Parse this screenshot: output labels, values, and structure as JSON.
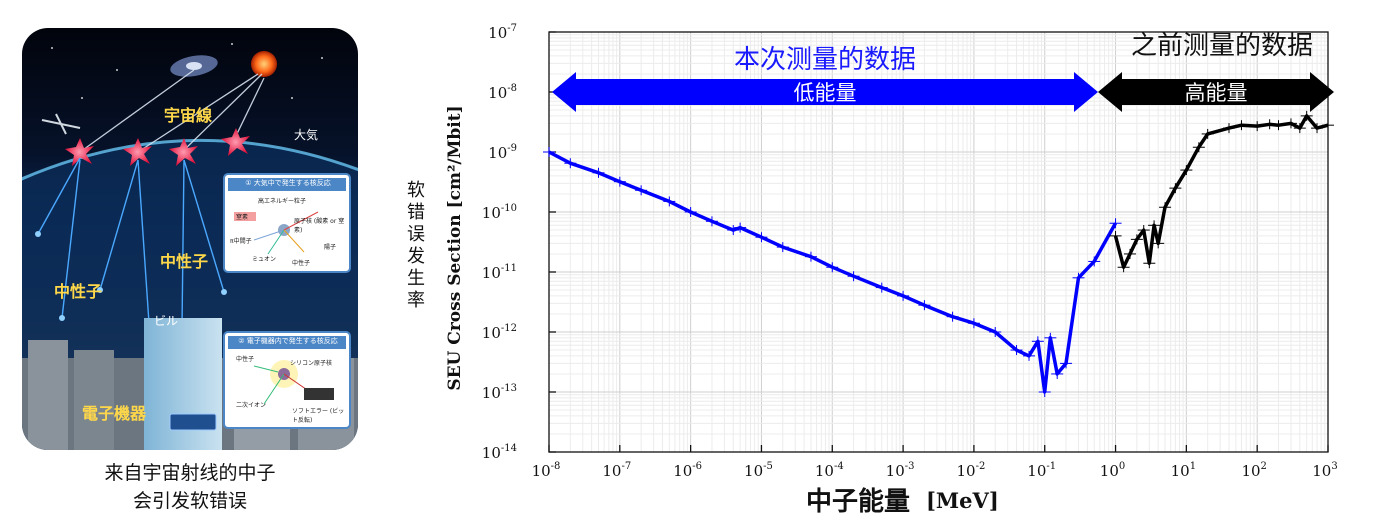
{
  "illustration": {
    "labels": {
      "cosmic_ray": "宇宙線",
      "atmosphere": "大気",
      "neutron_left": "中性子",
      "neutron_center": "中性子",
      "building": "ビル",
      "electronic_device": "電子機器"
    },
    "inset1": {
      "title": "① 大気中で発生する核反応",
      "items": [
        "高エネルギー粒子",
        "窒素",
        "原子核 (酸素 or 窒素)",
        "π中間子",
        "陽子",
        "ミュオン",
        "中性子"
      ]
    },
    "inset2": {
      "title": "② 電子機器内で発生する核反応",
      "items": [
        "中性子",
        "シリコン原子核",
        "二次イオン",
        "ソフトエラー (ビット反転)"
      ]
    },
    "caption_line1": "来自宇宙射线的中子",
    "caption_line2": "会引发软错误"
  },
  "chart_data": {
    "type": "line",
    "x_scale": "log",
    "y_scale": "log",
    "xlim": [
      1e-08,
      1000
    ],
    "ylim": [
      1e-14,
      1e-07
    ],
    "xlabel": "中子能量",
    "xlabel_unit": "[MeV]",
    "ylabel_cn": "软错误发生率",
    "ylabel_en": "SEU Cross Section [cm²/Mbit]",
    "x_tick_exponents": [
      "-8",
      "-7",
      "-6",
      "-5",
      "-4",
      "-3",
      "-2",
      "-1",
      "0",
      "1",
      "2",
      "3"
    ],
    "y_tick_exponents": [
      "-14",
      "-13",
      "-12",
      "-11",
      "-10",
      "-9",
      "-8",
      "-7"
    ],
    "tick_base": "10",
    "grid": true,
    "annotations": {
      "this_measurement": "本次测量的数据",
      "low_energy": "低能量",
      "previous_measurement": "之前测量的数据",
      "high_energy": "高能量"
    },
    "series": [
      {
        "color": "#0000ff",
        "x": [
          1e-08,
          2e-08,
          5e-08,
          1e-07,
          2e-07,
          5e-07,
          1e-06,
          2e-06,
          4e-06,
          5e-06,
          1e-05,
          2e-05,
          5e-05,
          0.0001,
          0.0002,
          0.0005,
          0.001,
          0.002,
          0.005,
          0.01,
          0.02,
          0.04,
          0.06,
          0.08,
          0.1,
          0.12,
          0.15,
          0.2,
          0.3,
          0.5,
          1
        ],
        "y": [
          1e-09,
          6.5e-10,
          4.5e-10,
          3.2e-10,
          2.3e-10,
          1.5e-10,
          1e-10,
          7e-11,
          5e-11,
          5.5e-11,
          3.8e-11,
          2.6e-11,
          1.8e-11,
          1.2e-11,
          8.5e-12,
          5.5e-12,
          4e-12,
          2.8e-12,
          1.8e-12,
          1.4e-12,
          1e-12,
          5e-13,
          4e-13,
          7e-13,
          1e-13,
          8e-13,
          2e-13,
          3e-13,
          8e-12,
          1.5e-11,
          6.5e-11
        ]
      },
      {
        "color": "#000000",
        "x": [
          1,
          1.3,
          1.6,
          2,
          2.5,
          3,
          3.5,
          4,
          5,
          7,
          10,
          15,
          20,
          40,
          60,
          100,
          150,
          200,
          300,
          400,
          500,
          700,
          1000
        ],
        "y": [
          4e-11,
          1.2e-11,
          2e-11,
          3.5e-11,
          5e-11,
          1.4e-11,
          6e-11,
          3e-11,
          1.2e-10,
          2.5e-10,
          5e-10,
          1.2e-09,
          2e-09,
          2.5e-09,
          2.8e-09,
          2.7e-09,
          2.9e-09,
          2.8e-09,
          3e-09,
          2.5e-09,
          4e-09,
          2.5e-09,
          2.8e-09
        ]
      }
    ]
  }
}
